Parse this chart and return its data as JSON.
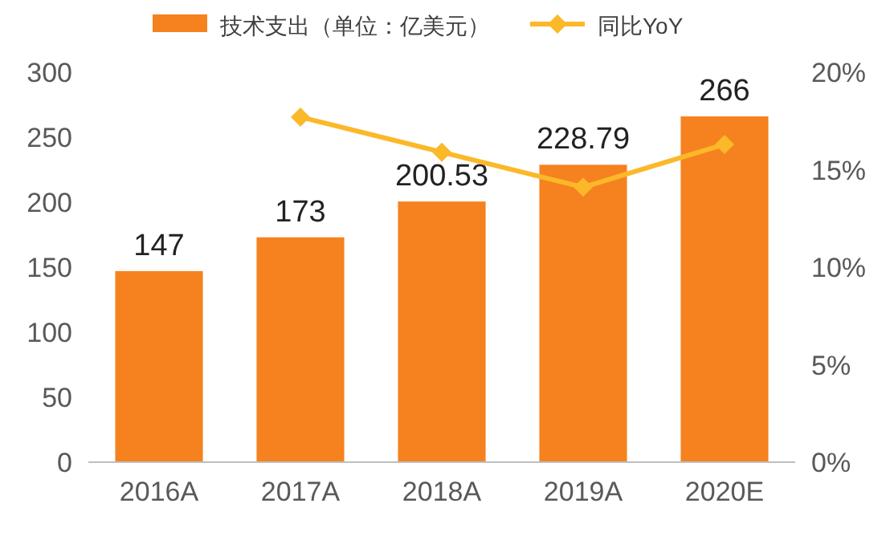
{
  "chart_data": {
    "type": "bar",
    "categories": [
      "2016A",
      "2017A",
      "2018A",
      "2019A",
      "2020E"
    ],
    "series": [
      {
        "name": "技术支出（单位：亿美元）",
        "color": "#f5821f",
        "values": [
          147,
          173,
          200.53,
          228.79,
          266
        ],
        "value_labels": [
          "147",
          "173",
          "200.53",
          "228.79",
          "266"
        ]
      },
      {
        "type": "line",
        "name": "同比YoY",
        "color": "#fbb829",
        "axis": "y2",
        "marker": "diamond",
        "values": [
          null,
          17.7,
          15.9,
          14.1,
          16.3
        ]
      }
    ],
    "ylim": [
      0,
      300
    ],
    "yticks": [
      0,
      50,
      100,
      150,
      200,
      250,
      300
    ],
    "y2lim": [
      0,
      20
    ],
    "y2ticks": [
      {
        "value": 0,
        "label": "0%"
      },
      {
        "value": 5,
        "label": "5%"
      },
      {
        "value": 10,
        "label": "10%"
      },
      {
        "value": 15,
        "label": "15%"
      },
      {
        "value": 20,
        "label": "20%"
      }
    ],
    "grid": false,
    "legend": "top"
  }
}
